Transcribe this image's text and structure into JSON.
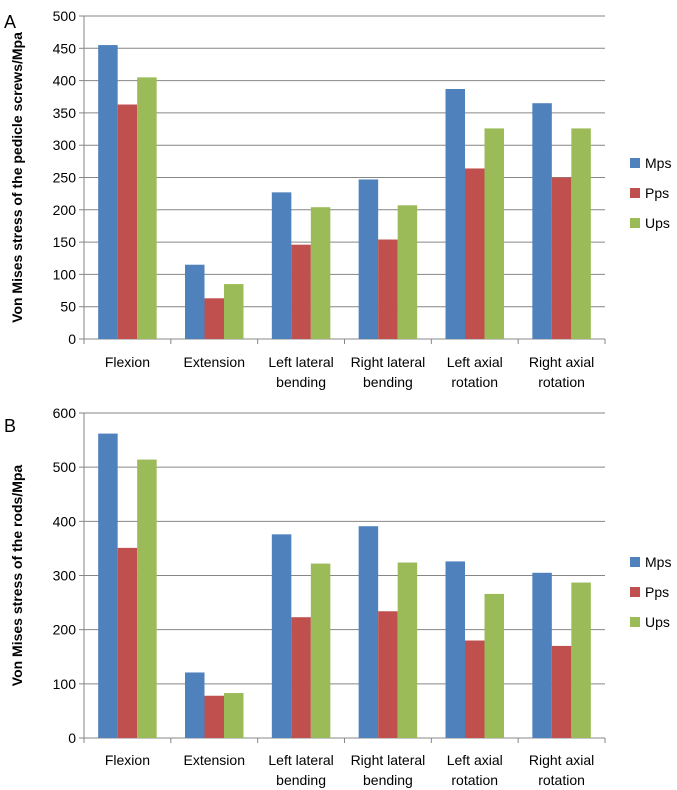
{
  "chart_data": [
    {
      "type": "bar",
      "panel_label": "A",
      "title": "",
      "xlabel": "",
      "ylabel": "Von Mises stress of the pedicle screws/Mpa",
      "ylim": [
        0,
        500
      ],
      "ytick_step": 50,
      "yticks": [
        "0",
        "50",
        "100",
        "150",
        "200",
        "250",
        "300",
        "350",
        "400",
        "450",
        "500"
      ],
      "categories": [
        [
          "Flexion"
        ],
        [
          "Extension"
        ],
        [
          "Left lateral",
          "bending"
        ],
        [
          "Right lateral",
          "bending"
        ],
        [
          "Left axial",
          "rotation"
        ],
        [
          "Right axial",
          "rotation"
        ]
      ],
      "series": [
        {
          "name": "Mps",
          "color": "#4F81BD",
          "values": [
            455,
            115,
            227,
            247,
            387,
            365
          ]
        },
        {
          "name": "Pps",
          "color": "#C0504D",
          "values": [
            363,
            63,
            146,
            154,
            264,
            250
          ]
        },
        {
          "name": "Ups",
          "color": "#9BBB59",
          "values": [
            405,
            85,
            204,
            207,
            326,
            326
          ]
        }
      ],
      "grid": true,
      "legend_position": "right"
    },
    {
      "type": "bar",
      "panel_label": "B",
      "title": "",
      "xlabel": "",
      "ylabel": "Von Mises stress of the rods/Mpa",
      "ylim": [
        0,
        600
      ],
      "ytick_step": 100,
      "yticks": [
        "0",
        "100",
        "200",
        "300",
        "400",
        "500",
        "600"
      ],
      "categories": [
        [
          "Flexion"
        ],
        [
          "Extension"
        ],
        [
          "Left lateral",
          "bending"
        ],
        [
          "Right lateral",
          "bending"
        ],
        [
          "Left axial",
          "rotation"
        ],
        [
          "Right axial",
          "rotation"
        ]
      ],
      "series": [
        {
          "name": "Mps",
          "color": "#4F81BD",
          "values": [
            562,
            121,
            376,
            391,
            326,
            305
          ]
        },
        {
          "name": "Pps",
          "color": "#C0504D",
          "values": [
            351,
            78,
            223,
            234,
            180,
            170
          ]
        },
        {
          "name": "Ups",
          "color": "#9BBB59",
          "values": [
            514,
            83,
            322,
            324,
            266,
            287
          ]
        }
      ],
      "grid": true,
      "legend_position": "right"
    }
  ]
}
